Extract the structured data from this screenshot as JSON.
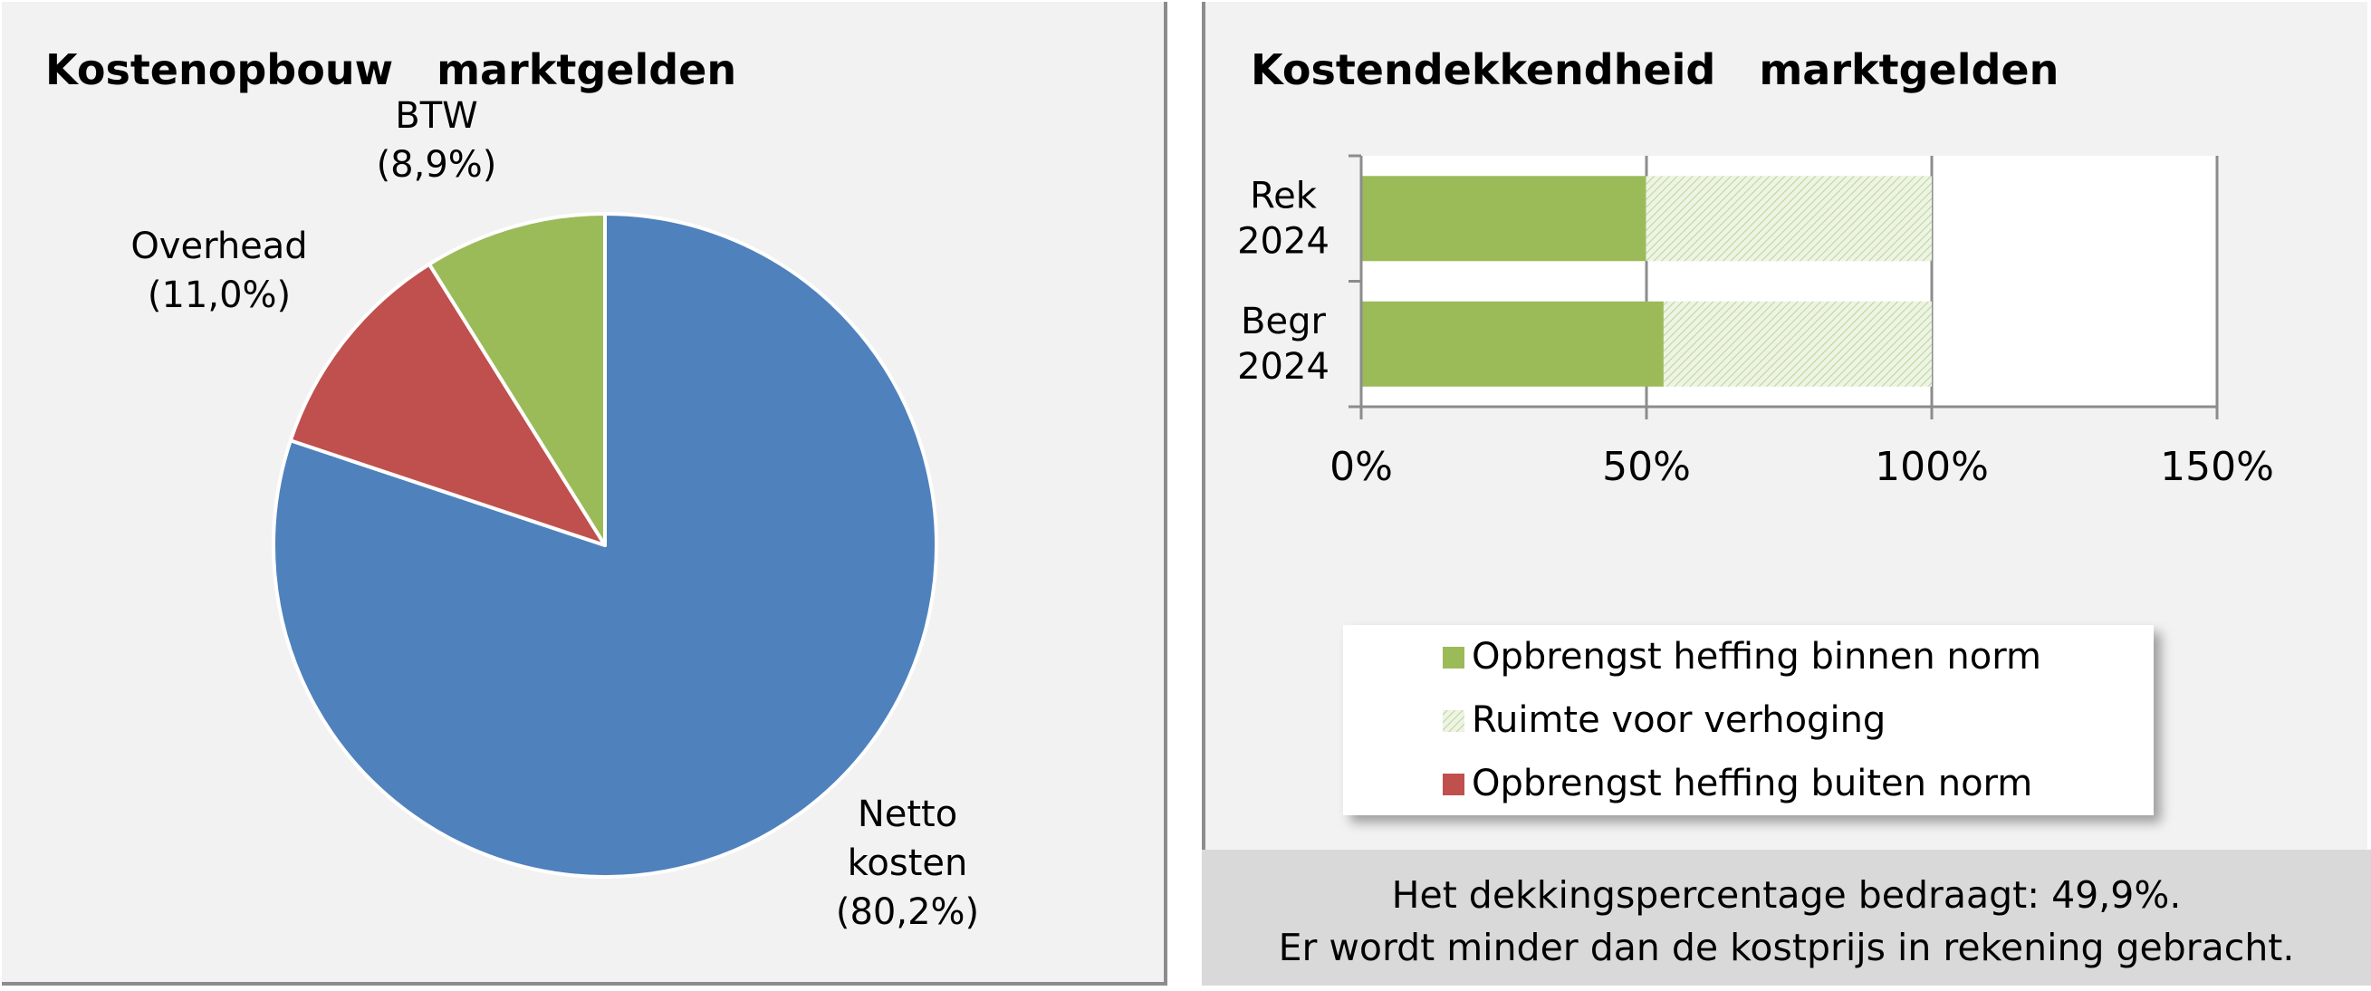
{
  "left": {
    "title": "Kostenopbouw  marktgelden",
    "chart_data": {
      "type": "pie",
      "title": "Kostenopbouw  marktgelden",
      "slices": [
        {
          "name": "Netto kosten",
          "label_lines": [
            "Netto",
            "kosten",
            "(80,2%)"
          ],
          "value": 80.2,
          "color": "#4f81bd"
        },
        {
          "name": "Overhead",
          "label_lines": [
            "Overhead",
            "(11,0%)"
          ],
          "value": 11.0,
          "color": "#c0504d"
        },
        {
          "name": "BTW",
          "label_lines": [
            "BTW",
            "(8,9%)"
          ],
          "value": 8.9,
          "color": "#9bbb59"
        }
      ]
    }
  },
  "right": {
    "title": "Kostendekkendheid  marktgelden",
    "chart_data": {
      "type": "bar",
      "orientation": "horizontal",
      "stacked": true,
      "title": "Kostendekkendheid  marktgelden",
      "categories": [
        [
          "Rek",
          "2024"
        ],
        [
          "Begr",
          "2024"
        ]
      ],
      "series": [
        {
          "name": "Opbrengst heffing binnen norm",
          "values": [
            49.9,
            53
          ],
          "color": "#9bbb59",
          "fill": "solid"
        },
        {
          "name": "Ruimte voor verhoging",
          "values": [
            50.1,
            47
          ],
          "color": "#9bbb59",
          "fill": "hatched"
        },
        {
          "name": "Opbrengst heffing buiten norm",
          "values": [
            0,
            0
          ],
          "color": "#c0504d",
          "fill": "solid"
        }
      ],
      "xlim": [
        0,
        150
      ],
      "xticks": [
        0,
        50,
        100,
        150
      ],
      "xtick_labels": [
        "0%",
        "50%",
        "100%",
        "150%"
      ],
      "grid": true,
      "legend_position": "bottom"
    },
    "note": {
      "line1": "Het dekkingspercentage  bedraagt: 49,9%.",
      "line2": "Er wordt minder dan de kostprijs in rekening  gebracht."
    }
  }
}
